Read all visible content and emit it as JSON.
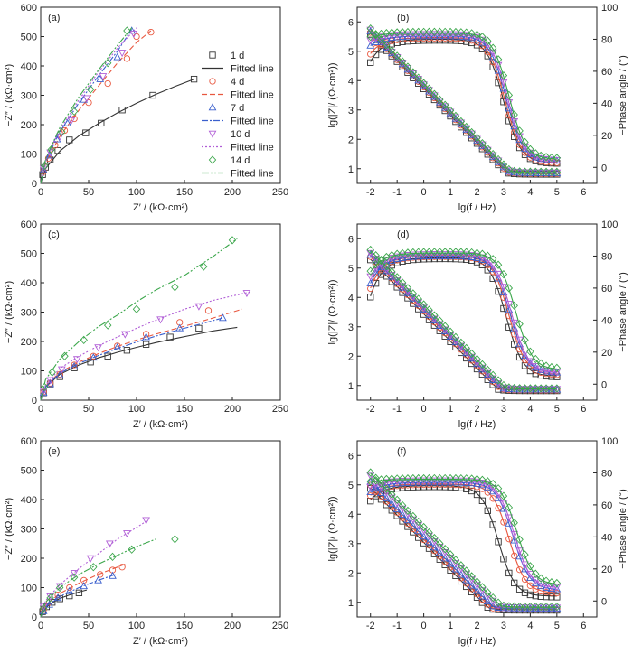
{
  "figure": {
    "colors": {
      "1 d": "#333333",
      "4 d": "#e8573f",
      "7 d": "#3a5fcd",
      "10 d": "#b05dd6",
      "14 d": "#3aa64a"
    },
    "legend_entries": [
      "1 d",
      "Fitted line",
      "4 d",
      "Fitted line",
      "7 d",
      "Fitted line",
      "10 d",
      "Fitted line",
      "14 d",
      "Fitted line"
    ]
  },
  "chart_data": [
    {
      "id": "a",
      "panel_label": "(a)",
      "type": "scatter",
      "xlabel": "Z′ / (kΩ·cm²)",
      "ylabel": "−Z″ / (kΩ·cm²)",
      "xlim": [
        0,
        250
      ],
      "ylim": [
        0,
        600
      ],
      "xticks": [
        0,
        50,
        100,
        150,
        200,
        250
      ],
      "yticks": [
        0,
        100,
        200,
        300,
        400,
        500,
        600
      ],
      "legend": "right",
      "series": [
        {
          "name": "1 d",
          "marker": "square",
          "x": [
            2,
            5,
            10,
            18,
            30,
            47,
            63,
            85,
            117,
            160
          ],
          "y": [
            30,
            55,
            80,
            112,
            148,
            172,
            205,
            250,
            300,
            355
          ],
          "fit_x": [
            0,
            5,
            20,
            40,
            60,
            80,
            100,
            120,
            140,
            160
          ],
          "fit_y": [
            0,
            50,
            110,
            162,
            203,
            240,
            273,
            303,
            330,
            355
          ]
        },
        {
          "name": "4 d",
          "marker": "circle",
          "x": [
            3,
            8,
            15,
            25,
            35,
            50,
            70,
            90,
            100,
            115
          ],
          "y": [
            40,
            85,
            130,
            180,
            220,
            275,
            340,
            425,
            500,
            515
          ],
          "fit_x": [
            0,
            5,
            20,
            40,
            60,
            80,
            100,
            115
          ],
          "fit_y": [
            0,
            70,
            160,
            250,
            330,
            410,
            480,
            520
          ]
        },
        {
          "name": "7 d",
          "marker": "triangle",
          "x": [
            3,
            9,
            17,
            28,
            45,
            62,
            80,
            95
          ],
          "y": [
            45,
            95,
            150,
            205,
            285,
            355,
            430,
            520
          ],
          "fit_x": [
            0,
            5,
            20,
            40,
            60,
            80,
            95
          ],
          "fit_y": [
            0,
            75,
            175,
            275,
            365,
            450,
            525
          ]
        },
        {
          "name": "10 d",
          "marker": "triangle-down",
          "x": [
            3,
            10,
            20,
            32,
            48,
            65,
            85,
            97
          ],
          "y": [
            50,
            105,
            160,
            215,
            290,
            365,
            445,
            510
          ],
          "fit_x": [
            0,
            5,
            20,
            40,
            60,
            80,
            100
          ],
          "fit_y": [
            0,
            78,
            182,
            285,
            378,
            460,
            530
          ]
        },
        {
          "name": "14 d",
          "marker": "diamond",
          "x": [
            4,
            11,
            22,
            35,
            52,
            70,
            90
          ],
          "y": [
            60,
            115,
            175,
            245,
            320,
            410,
            520
          ],
          "fit_x": [
            0,
            5,
            20,
            40,
            60,
            80,
            95
          ],
          "fit_y": [
            0,
            82,
            190,
            295,
            385,
            470,
            530
          ]
        }
      ]
    },
    {
      "id": "b",
      "panel_label": "(b)",
      "type": "line",
      "xlabel": "lg(f / Hz)",
      "ylabel": "lg(|Z|/ (Ω·cm²))",
      "y2label": "−Phase angle / (°)",
      "xlim": [
        -2.5,
        6.5
      ],
      "ylim": [
        0.5,
        6.5
      ],
      "y2lim": [
        -10,
        100
      ],
      "xticks": [
        -2,
        -1,
        0,
        1,
        2,
        3,
        4,
        5,
        6
      ],
      "yticks": [
        1,
        2,
        3,
        4,
        5,
        6
      ],
      "y2ticks": [
        0,
        20,
        40,
        60,
        80,
        100
      ],
      "impedance": {
        "mod_low": [
          5.6,
          5.65,
          5.68,
          5.72,
          5.75
        ],
        "mod_high": [
          0.83,
          0.84,
          0.85,
          0.86,
          0.87
        ],
        "ph_max": [
          80,
          81,
          82,
          83,
          84
        ],
        "ph_low": [
          66,
          71,
          76,
          79,
          81
        ],
        "fc": [
          3.0,
          3.05,
          3.1,
          3.15,
          3.2
        ],
        "ph_hf": [
          3,
          3,
          4,
          4,
          5
        ]
      }
    },
    {
      "id": "c",
      "panel_label": "(c)",
      "type": "scatter",
      "xlabel": "Z′ / (kΩ·cm²)",
      "ylabel": "−Z″ / (kΩ·cm²)",
      "xlim": [
        0,
        250
      ],
      "ylim": [
        0,
        600
      ],
      "xticks": [
        0,
        50,
        100,
        150,
        200,
        250
      ],
      "yticks": [
        0,
        100,
        200,
        300,
        400,
        500,
        600
      ],
      "series": [
        {
          "name": "1 d",
          "marker": "square",
          "x": [
            3,
            10,
            20,
            35,
            52,
            70,
            90,
            110,
            135,
            165
          ],
          "y": [
            25,
            55,
            80,
            110,
            130,
            150,
            170,
            190,
            215,
            245
          ],
          "fit_x": [
            0,
            5,
            20,
            40,
            60,
            80,
            100,
            120,
            140,
            160,
            180,
            205
          ],
          "fit_y": [
            0,
            45,
            88,
            120,
            144,
            163,
            180,
            196,
            210,
            223,
            236,
            248
          ]
        },
        {
          "name": "4 d",
          "marker": "circle",
          "x": [
            3,
            10,
            20,
            35,
            55,
            80,
            110,
            145,
            175
          ],
          "y": [
            28,
            58,
            88,
            120,
            150,
            185,
            225,
            265,
            305
          ],
          "fit_x": [
            0,
            5,
            20,
            40,
            60,
            80,
            100,
            120,
            150,
            180,
            210
          ],
          "fit_y": [
            0,
            48,
            95,
            130,
            158,
            183,
            205,
            225,
            252,
            280,
            310
          ]
        },
        {
          "name": "7 d",
          "marker": "triangle",
          "x": [
            3,
            10,
            20,
            35,
            55,
            80,
            110,
            145,
            190
          ],
          "y": [
            25,
            55,
            85,
            115,
            145,
            180,
            215,
            245,
            280
          ],
          "fit_x": [
            0,
            5,
            20,
            40,
            60,
            80,
            100,
            120,
            150,
            190
          ],
          "fit_y": [
            0,
            46,
            92,
            125,
            152,
            176,
            198,
            218,
            245,
            280
          ]
        },
        {
          "name": "10 d",
          "marker": "triangle-down",
          "x": [
            3,
            10,
            22,
            38,
            60,
            88,
            125,
            165,
            215
          ],
          "y": [
            32,
            68,
            105,
            140,
            180,
            225,
            275,
            320,
            365
          ],
          "fit_x": [
            0,
            5,
            20,
            40,
            60,
            80,
            100,
            120,
            150,
            180,
            220
          ],
          "fit_y": [
            0,
            52,
            108,
            150,
            185,
            215,
            245,
            272,
            310,
            340,
            370
          ]
        },
        {
          "name": "14 d",
          "marker": "diamond",
          "x": [
            4,
            12,
            25,
            45,
            70,
            100,
            140,
            170,
            200
          ],
          "y": [
            45,
            95,
            150,
            205,
            255,
            310,
            385,
            455,
            545
          ],
          "fit_x": [
            0,
            5,
            20,
            40,
            60,
            80,
            100,
            120,
            150,
            180,
            205
          ],
          "fit_y": [
            0,
            70,
            140,
            200,
            250,
            290,
            335,
            375,
            425,
            490,
            550
          ]
        }
      ]
    },
    {
      "id": "d",
      "panel_label": "(d)",
      "type": "line",
      "xlabel": "lg(f / Hz)",
      "ylabel": "lg(|Z|/ (Ω·cm²))",
      "y2label": "−Phase angle / (°)",
      "xlim": [
        -2.5,
        6.5
      ],
      "ylim": [
        0.5,
        6.5
      ],
      "y2lim": [
        -10,
        100
      ],
      "xticks": [
        -2,
        -1,
        0,
        1,
        2,
        3,
        4,
        5,
        6
      ],
      "yticks": [
        1,
        2,
        3,
        4,
        5,
        6
      ],
      "y2ticks": [
        0,
        20,
        40,
        60,
        80,
        100
      ],
      "impedance": {
        "mod_low": [
          5.3,
          5.4,
          5.45,
          5.5,
          5.6
        ],
        "mod_high": [
          0.84,
          0.85,
          0.86,
          0.87,
          0.88
        ],
        "ph_max": [
          79,
          80,
          80,
          81,
          82
        ],
        "ph_low": [
          55,
          60,
          63,
          67,
          70
        ],
        "fc": [
          3.1,
          3.2,
          3.25,
          3.3,
          3.45
        ],
        "ph_hf": [
          5,
          6,
          7,
          7,
          9
        ]
      }
    },
    {
      "id": "e",
      "panel_label": "(e)",
      "type": "scatter",
      "xlabel": "Z′ / (kΩ·cm²)",
      "ylabel": "−Z″ / (kΩ·cm²)",
      "xlim": [
        0,
        250
      ],
      "ylim": [
        0,
        600
      ],
      "xticks": [
        0,
        50,
        100,
        150,
        200,
        250
      ],
      "yticks": [
        0,
        100,
        200,
        300,
        400,
        500,
        600
      ],
      "series": [
        {
          "name": "1 d",
          "marker": "square",
          "x": [
            2,
            6,
            12,
            20,
            30,
            40
          ],
          "y": [
            18,
            35,
            50,
            62,
            72,
            82
          ],
          "fit_x": [
            0,
            5,
            10,
            20,
            30,
            40,
            48
          ],
          "fit_y": [
            0,
            30,
            45,
            63,
            75,
            85,
            92
          ]
        },
        {
          "name": "4 d",
          "marker": "circle",
          "x": [
            3,
            9,
            18,
            30,
            45,
            62,
            75,
            85
          ],
          "y": [
            25,
            50,
            75,
            100,
            125,
            145,
            160,
            170
          ],
          "fit_x": [
            0,
            5,
            20,
            40,
            60,
            80,
            88
          ],
          "fit_y": [
            0,
            40,
            80,
            115,
            145,
            170,
            180
          ]
        },
        {
          "name": "7 d",
          "marker": "triangle",
          "x": [
            3,
            9,
            18,
            30,
            45,
            60,
            75
          ],
          "y": [
            20,
            42,
            65,
            88,
            105,
            125,
            140
          ],
          "fit_x": [
            0,
            5,
            20,
            40,
            60,
            78
          ],
          "fit_y": [
            0,
            35,
            70,
            100,
            125,
            145
          ]
        },
        {
          "name": "10 d",
          "marker": "triangle-down",
          "x": [
            3,
            10,
            20,
            35,
            52,
            72,
            90,
            110
          ],
          "y": [
            35,
            70,
            105,
            150,
            200,
            250,
            285,
            330
          ],
          "fit_x": [
            0,
            5,
            20,
            40,
            60,
            80,
            100,
            112
          ],
          "fit_y": [
            0,
            55,
            110,
            165,
            215,
            265,
            305,
            330
          ]
        },
        {
          "name": "14 d",
          "marker": "diamond",
          "x": [
            3,
            10,
            20,
            35,
            55,
            75,
            95,
            140
          ],
          "y": [
            30,
            65,
            100,
            135,
            170,
            205,
            230,
            265
          ],
          "fit_x": [
            0,
            5,
            20,
            40,
            60,
            80,
            100,
            120
          ],
          "fit_y": [
            0,
            50,
            100,
            145,
            180,
            210,
            240,
            265
          ]
        }
      ]
    },
    {
      "id": "f",
      "panel_label": "(f)",
      "type": "line",
      "xlabel": "lg(f / Hz)",
      "ylabel": "lg(|Z|/ (Ω·cm²))",
      "y2label": "−Phase angle / (°)",
      "xlim": [
        -2.5,
        6.5
      ],
      "ylim": [
        0.5,
        6.5
      ],
      "y2lim": [
        -10,
        100
      ],
      "xticks": [
        -2,
        -1,
        0,
        1,
        2,
        3,
        4,
        5,
        6
      ],
      "yticks": [
        1,
        2,
        3,
        4,
        5,
        6
      ],
      "y2ticks": [
        0,
        20,
        40,
        60,
        80,
        100
      ],
      "impedance": {
        "mod_low": [
          4.9,
          5.0,
          5.1,
          5.3,
          5.4
        ],
        "mod_high": [
          0.75,
          0.77,
          0.79,
          0.81,
          0.83
        ],
        "ph_max": [
          72,
          73,
          74,
          75,
          76
        ],
        "ph_low": [
          63,
          66,
          68,
          71,
          74
        ],
        "fc": [
          2.8,
          3.2,
          3.35,
          3.4,
          3.5
        ],
        "ph_hf": [
          3,
          5,
          7,
          8,
          10
        ]
      }
    }
  ]
}
